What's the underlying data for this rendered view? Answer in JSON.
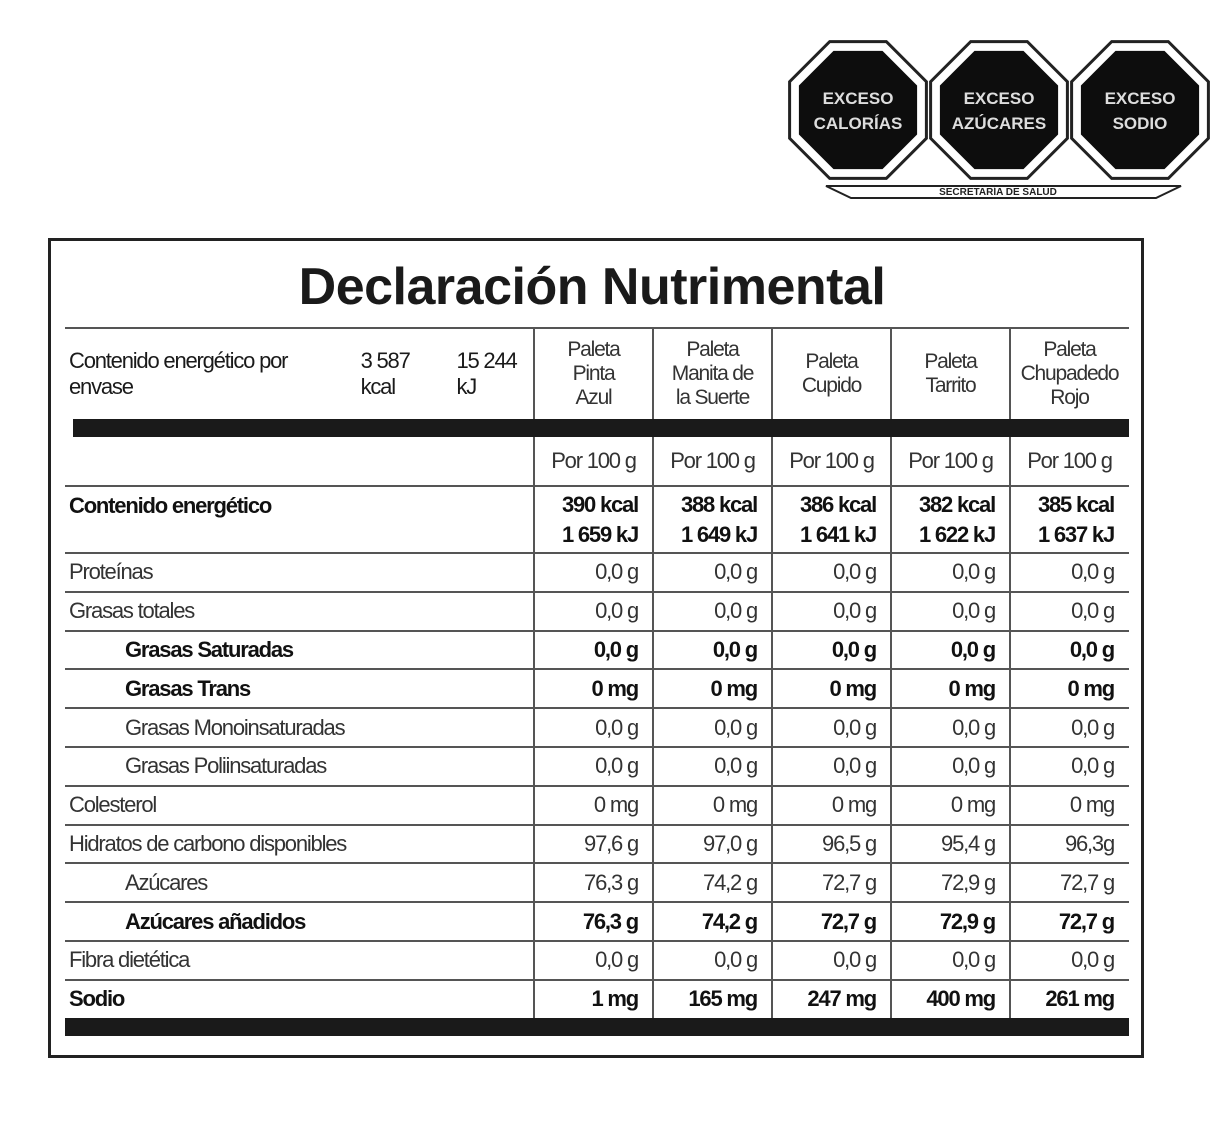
{
  "seals": {
    "items": [
      {
        "line1": "EXCESO",
        "line2": "CALORÍAS"
      },
      {
        "line1": "EXCESO",
        "line2": "AZÚCARES"
      },
      {
        "line1": "EXCESO",
        "line2": "SODIO"
      }
    ],
    "footer": "SECRETARÍA DE SALUD"
  },
  "title": "Declaración Nutrimental",
  "energy_per_package": {
    "label": "Contenido energético por envase",
    "kcal": "3 587 kcal",
    "kj": "15 244 kJ"
  },
  "columns": [
    [
      "Paleta",
      "Pinta",
      "Azul"
    ],
    [
      "Paleta",
      "Manita de",
      "la Suerte"
    ],
    [
      "Paleta",
      "Cupido"
    ],
    [
      "Paleta",
      "Tarrito"
    ],
    [
      "Paleta",
      "Chupadedo",
      "Rojo"
    ]
  ],
  "per_label": "Por 100 g",
  "energy": {
    "label": "Contenido energético",
    "kcal": [
      "390 kcal",
      "388 kcal",
      "386 kcal",
      "382 kcal",
      "385 kcal"
    ],
    "kj": [
      "1 659 kJ",
      "1 649 kJ",
      "1 641 kJ",
      "1 622 kJ",
      "1 637 kJ"
    ]
  },
  "rows": [
    {
      "label": "Proteínas",
      "bold": false,
      "indent": false,
      "values": [
        "0,0 g",
        "0,0 g",
        "0,0 g",
        "0,0 g",
        "0,0 g"
      ]
    },
    {
      "label": "Grasas totales",
      "bold": false,
      "indent": false,
      "values": [
        "0,0 g",
        "0,0 g",
        "0,0 g",
        "0,0 g",
        "0,0 g"
      ]
    },
    {
      "label": "Grasas Saturadas",
      "bold": true,
      "indent": true,
      "values": [
        "0,0 g",
        "0,0 g",
        "0,0 g",
        "0,0 g",
        "0,0 g"
      ]
    },
    {
      "label": "Grasas Trans",
      "bold": true,
      "indent": true,
      "values": [
        "0 mg",
        "0 mg",
        "0 mg",
        "0 mg",
        "0 mg"
      ]
    },
    {
      "label": "Grasas Monoinsaturadas",
      "bold": false,
      "indent": true,
      "values": [
        "0,0 g",
        "0,0 g",
        "0,0 g",
        "0,0 g",
        "0,0 g"
      ]
    },
    {
      "label": "Grasas Poliinsaturadas",
      "bold": false,
      "indent": true,
      "values": [
        "0,0 g",
        "0,0 g",
        "0,0 g",
        "0,0 g",
        "0,0 g"
      ]
    },
    {
      "label": "Colesterol",
      "bold": false,
      "indent": false,
      "values": [
        "0 mg",
        "0 mg",
        "0 mg",
        "0 mg",
        "0 mg"
      ]
    },
    {
      "label": "Hidratos de carbono disponibles",
      "bold": false,
      "indent": false,
      "values": [
        "97,6 g",
        "97,0 g",
        "96,5 g",
        "95,4 g",
        "96,3g"
      ]
    },
    {
      "label": "Azúcares",
      "bold": false,
      "indent": true,
      "values": [
        "76,3 g",
        "74,2 g",
        "72,7 g",
        "72,9 g",
        "72,7 g"
      ]
    },
    {
      "label": "Azúcares añadidos",
      "bold": true,
      "indent": true,
      "values": [
        "76,3 g",
        "74,2 g",
        "72,7 g",
        "72,9 g",
        "72,7 g"
      ]
    },
    {
      "label": "Fibra dietética",
      "bold": false,
      "indent": false,
      "values": [
        "0,0 g",
        "0,0 g",
        "0,0 g",
        "0,0 g",
        "0,0 g"
      ]
    },
    {
      "label": "Sodio",
      "bold": true,
      "indent": false,
      "values": [
        "1 mg",
        "165 mg",
        "247 mg",
        "400 mg",
        "261 mg"
      ]
    }
  ]
}
